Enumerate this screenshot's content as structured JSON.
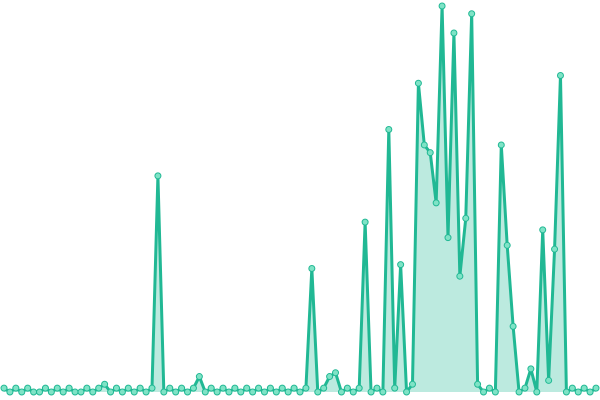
{
  "chart_data": {
    "type": "line",
    "color": "#21b894",
    "marker_color": "#7fe3c6",
    "area": true,
    "xlim": [
      0,
      100
    ],
    "ylim": [
      0,
      100
    ],
    "x": [
      0,
      1,
      2,
      3,
      4,
      5,
      6,
      7,
      8,
      9,
      10,
      11,
      12,
      13,
      14,
      15,
      16,
      17,
      18,
      19,
      20,
      21,
      22,
      23,
      24,
      25,
      26,
      27,
      28,
      29,
      30,
      31,
      32,
      33,
      34,
      35,
      36,
      37,
      38,
      39,
      40,
      41,
      42,
      43,
      44,
      45,
      46,
      47,
      48,
      49,
      50,
      51,
      52,
      53,
      54,
      55,
      56,
      57,
      58,
      59,
      60,
      61,
      62,
      63,
      64,
      65,
      66,
      67,
      68,
      69,
      70,
      71,
      72,
      73,
      74,
      75,
      76,
      77,
      78,
      79,
      80,
      81,
      82,
      83,
      84,
      85,
      86,
      87,
      88,
      89,
      90,
      91,
      92,
      93,
      94,
      95,
      96,
      97,
      98,
      99,
      100
    ],
    "values": [
      1,
      0,
      1,
      0,
      1,
      0,
      0,
      1,
      0,
      1,
      0,
      1,
      0,
      0,
      1,
      0,
      1,
      2,
      0,
      1,
      0,
      1,
      0,
      1,
      0,
      1,
      56,
      0,
      1,
      0,
      1,
      0,
      1,
      4,
      0,
      1,
      0,
      1,
      0,
      1,
      0,
      1,
      0,
      1,
      0,
      1,
      0,
      1,
      0,
      1,
      0,
      1,
      32,
      0,
      1,
      4,
      5,
      0,
      1,
      0,
      1,
      44,
      0,
      1,
      0,
      68,
      1,
      33,
      0,
      2,
      80,
      64,
      62,
      49,
      100,
      40,
      93,
      30,
      45,
      98,
      2,
      0,
      1,
      0,
      64,
      38,
      17,
      0,
      1,
      6,
      0,
      42,
      3,
      37,
      82,
      0,
      1,
      0,
      1,
      0,
      1
    ]
  }
}
